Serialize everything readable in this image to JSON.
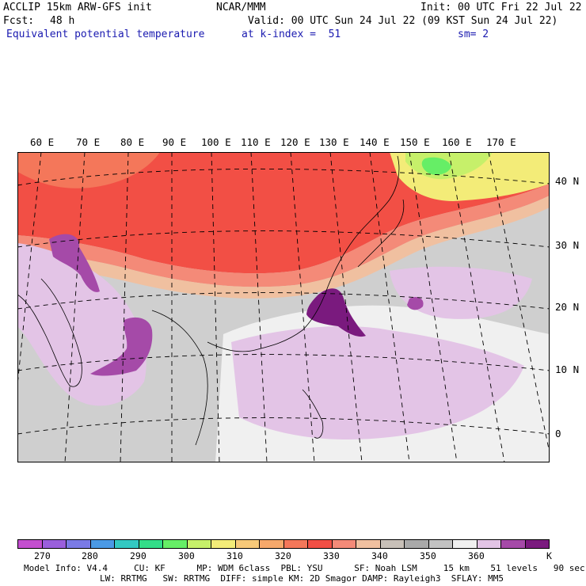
{
  "header": {
    "model_line": "ACCLIP 15km ARW-GFS init",
    "org": "NCAR/MMM",
    "init": "Init: 00 UTC Fri 22 Jul 22",
    "fcst_label": "Fcst:",
    "fcst_value": "48 h",
    "valid": "Valid: 00 UTC Sun 24 Jul 22 (09 KST Sun 24 Jul 22)",
    "field_name": "Equivalent potential temperature",
    "level": "at k-index =  51",
    "smoothing": "sm= 2"
  },
  "map": {
    "lon_labels": [
      "60 E",
      "70 E",
      "80 E",
      "90 E",
      "100 E",
      "110 E",
      "120 E",
      "130 E",
      "140 E",
      "150 E",
      "160 E",
      "170 E"
    ],
    "lat_labels": [
      "40 N",
      "30 N",
      "20 N",
      "10 N",
      "0"
    ]
  },
  "colorbar": {
    "unit": "K",
    "tick_labels": [
      "270",
      "280",
      "290",
      "300",
      "310",
      "320",
      "330",
      "340",
      "350",
      "360"
    ],
    "colors": [
      "#c44fd0",
      "#9a5fdc",
      "#7a7ae6",
      "#4b9ae6",
      "#33c9c2",
      "#33dd88",
      "#66ee66",
      "#c6f06a",
      "#f3ec78",
      "#f7c979",
      "#f6a86b",
      "#f4775a",
      "#f24f45",
      "#f48a78",
      "#f0c0a0",
      "#c8c0b8",
      "#a9a9a9",
      "#c2c2c2",
      "#f0f0f0",
      "#e3c4e6",
      "#a54aa8",
      "#7a1a7e"
    ]
  },
  "footer": {
    "line1": "Model Info: V4.4     CU: KF      MP: WDM 6class  PBL: YSU      SF: Noah LSM     15 km    51 levels   90 sec",
    "line2": "LW: RRTMG   SW: RRTMG  DIFF: simple KM: 2D Smagor DAMP: Rayleigh3  SFLAY: MM5"
  }
}
